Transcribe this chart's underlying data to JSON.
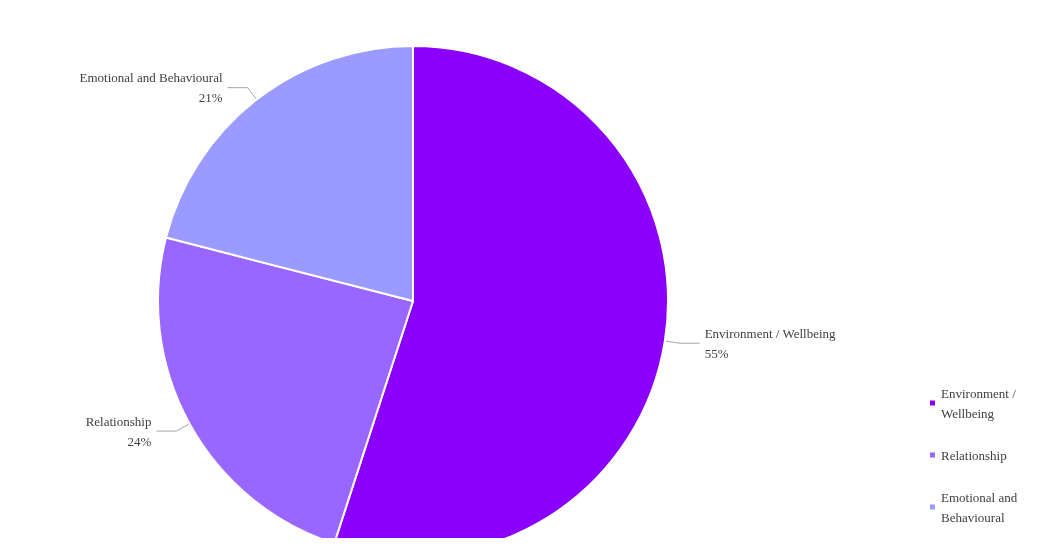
{
  "chart_data": {
    "type": "pie",
    "categories": [
      "Environment / Wellbeing",
      "Relationship",
      "Emotional and Behavioural"
    ],
    "values": [
      55,
      24,
      21
    ],
    "colors": [
      "#8a00fa",
      "#9966ff",
      "#9b9bff"
    ],
    "value_labels": [
      "55%",
      "24%",
      "21%"
    ],
    "legend": "right"
  }
}
